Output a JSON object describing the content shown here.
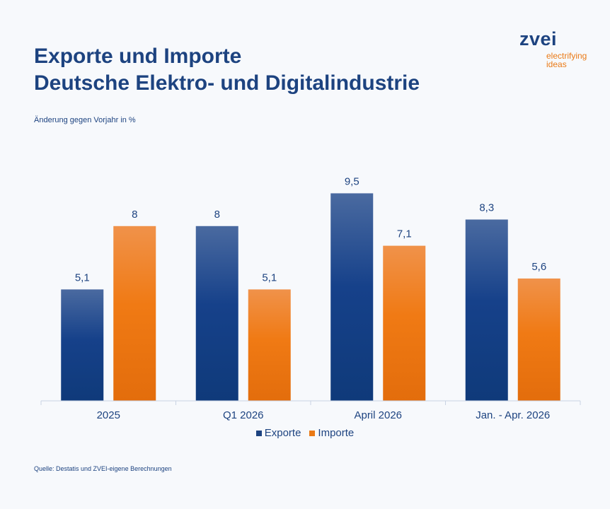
{
  "header": {
    "title": "Exporte und Importe",
    "subtitle": "Deutsche Elektro- und Digitalindustrie"
  },
  "logo": {
    "word": "zvei",
    "tagline_line1": "electrifying",
    "tagline_line2": "ideas"
  },
  "source": "Quelle: Destatis und ZVEI-eigene Berechnungen",
  "colors": {
    "exporte": "#1d4380",
    "importe": "#ea7a16",
    "text": "#1d4380"
  },
  "chart_data": {
    "type": "bar",
    "ylabel": "Änderung gegen Vorjahr in %",
    "categories": [
      "2025",
      "Q1 2026",
      "April 2026",
      "Jan. - Apr. 2026"
    ],
    "series": [
      {
        "name": "Exporte",
        "values": [
          5.1,
          8,
          9.5,
          8.3
        ],
        "labels": [
          "5,1",
          "8",
          "9,5",
          "8,3"
        ]
      },
      {
        "name": "Importe",
        "values": [
          8,
          5.1,
          7.1,
          5.6
        ],
        "labels": [
          "8",
          "5,1",
          "7,1",
          "5,6"
        ]
      }
    ],
    "ylim": [
      0,
      10.5
    ],
    "grid": false,
    "legend": "bottom-center"
  }
}
